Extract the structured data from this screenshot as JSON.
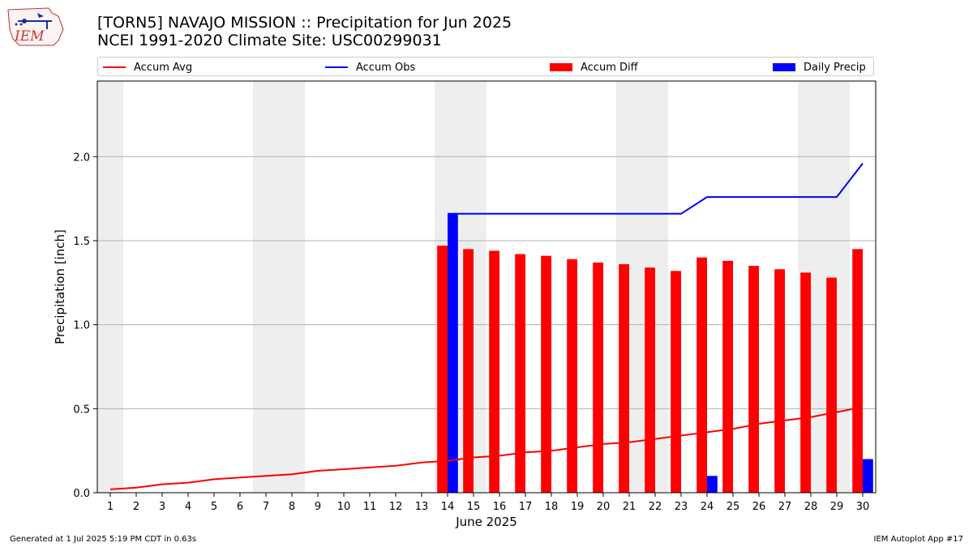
{
  "header": {
    "title_line1": "[TORN5] NAVAJO MISSION :: Precipitation for Jun 2025",
    "title_line2": "NCEI 1991-2020 Climate Site: USC00299031",
    "logo_text": "IEM"
  },
  "footer": {
    "left": "Generated at 1 Jul 2025 5:19 PM CDT in 0.63s",
    "right": "IEM Autoplot App #17"
  },
  "chart_data": {
    "type": "bar",
    "xlabel": "June 2025",
    "ylabel": "Precipitation [inch]",
    "ylim": [
      0,
      2.45
    ],
    "xlim": [
      0.5,
      30.5
    ],
    "yticks": [
      0.0,
      0.5,
      1.0,
      1.5,
      2.0
    ],
    "ytick_labels": [
      "0.0",
      "0.5",
      "1.0",
      "1.5",
      "2.0"
    ],
    "days": [
      1,
      2,
      3,
      4,
      5,
      6,
      7,
      8,
      9,
      10,
      11,
      12,
      13,
      14,
      15,
      16,
      17,
      18,
      19,
      20,
      21,
      22,
      23,
      24,
      25,
      26,
      27,
      28,
      29,
      30
    ],
    "grid": "y",
    "weekend_shading": [
      [
        1
      ],
      [
        7,
        8
      ],
      [
        14,
        15
      ],
      [
        21,
        22
      ],
      [
        28,
        29
      ]
    ],
    "legend_position": "top",
    "colors": {
      "accum_avg": "#ff0000",
      "accum_obs": "#0000ff",
      "accum_diff": "#ff0000",
      "daily_precip": "#0000ff",
      "weekend_shade": "#eeeeee"
    },
    "series": [
      {
        "name": "Accum Avg",
        "kind": "line",
        "x": [
          1,
          2,
          3,
          4,
          5,
          6,
          7,
          8,
          9,
          10,
          11,
          12,
          13,
          14,
          15,
          16,
          17,
          18,
          19,
          20,
          21,
          22,
          23,
          24,
          25,
          26,
          27,
          28,
          29,
          30
        ],
        "values": [
          0.02,
          0.03,
          0.05,
          0.06,
          0.08,
          0.09,
          0.1,
          0.11,
          0.13,
          0.14,
          0.15,
          0.16,
          0.18,
          0.19,
          0.21,
          0.22,
          0.24,
          0.25,
          0.27,
          0.29,
          0.3,
          0.32,
          0.34,
          0.36,
          0.38,
          0.41,
          0.43,
          0.45,
          0.48,
          0.51
        ]
      },
      {
        "name": "Accum Obs",
        "kind": "line",
        "x": [
          14,
          15,
          16,
          17,
          18,
          19,
          20,
          21,
          22,
          23,
          24,
          25,
          26,
          27,
          28,
          29,
          30
        ],
        "values": [
          1.66,
          1.66,
          1.66,
          1.66,
          1.66,
          1.66,
          1.66,
          1.66,
          1.66,
          1.66,
          1.76,
          1.76,
          1.76,
          1.76,
          1.76,
          1.76,
          1.96
        ]
      },
      {
        "name": "Accum Diff",
        "kind": "bar",
        "x": [
          14,
          15,
          16,
          17,
          18,
          19,
          20,
          21,
          22,
          23,
          24,
          25,
          26,
          27,
          28,
          29,
          30
        ],
        "values": [
          1.47,
          1.45,
          1.44,
          1.42,
          1.41,
          1.39,
          1.37,
          1.36,
          1.34,
          1.32,
          1.4,
          1.38,
          1.35,
          1.33,
          1.31,
          1.28,
          1.45
        ]
      },
      {
        "name": "Daily Precip",
        "kind": "bar",
        "x": [
          14,
          24,
          30
        ],
        "values": [
          1.66,
          0.1,
          0.2
        ]
      }
    ]
  }
}
